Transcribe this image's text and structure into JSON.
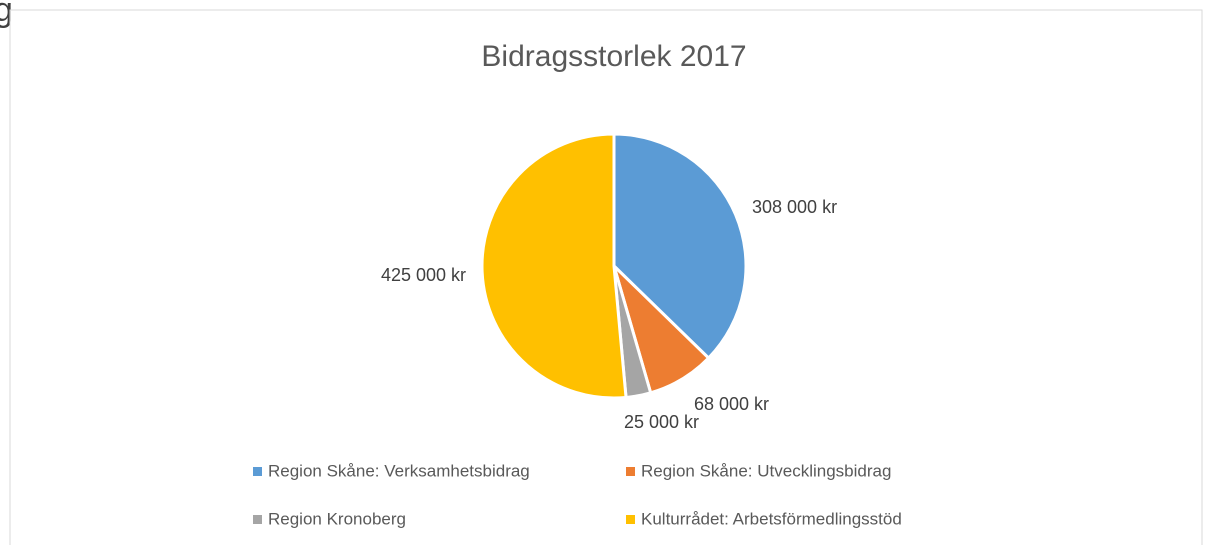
{
  "page_fragment": "g",
  "chart_data": {
    "type": "pie",
    "title": "Bidragsstorlek 2017",
    "categories": [
      "Region Skåne: Verksamhetsbidrag",
      "Region Skåne: Utvecklingsbidrag",
      "Region Kronoberg",
      "Kulturrådet: Arbetsförmedlingsstöd"
    ],
    "values": [
      308000,
      68000,
      25000,
      425000
    ],
    "value_labels": [
      "308 000 kr",
      "68 000 kr",
      "25 000 kr",
      "425 000 kr"
    ],
    "colors": [
      "#5b9bd5",
      "#ed7d31",
      "#a5a5a5",
      "#ffc000"
    ],
    "legend": "bottom"
  }
}
